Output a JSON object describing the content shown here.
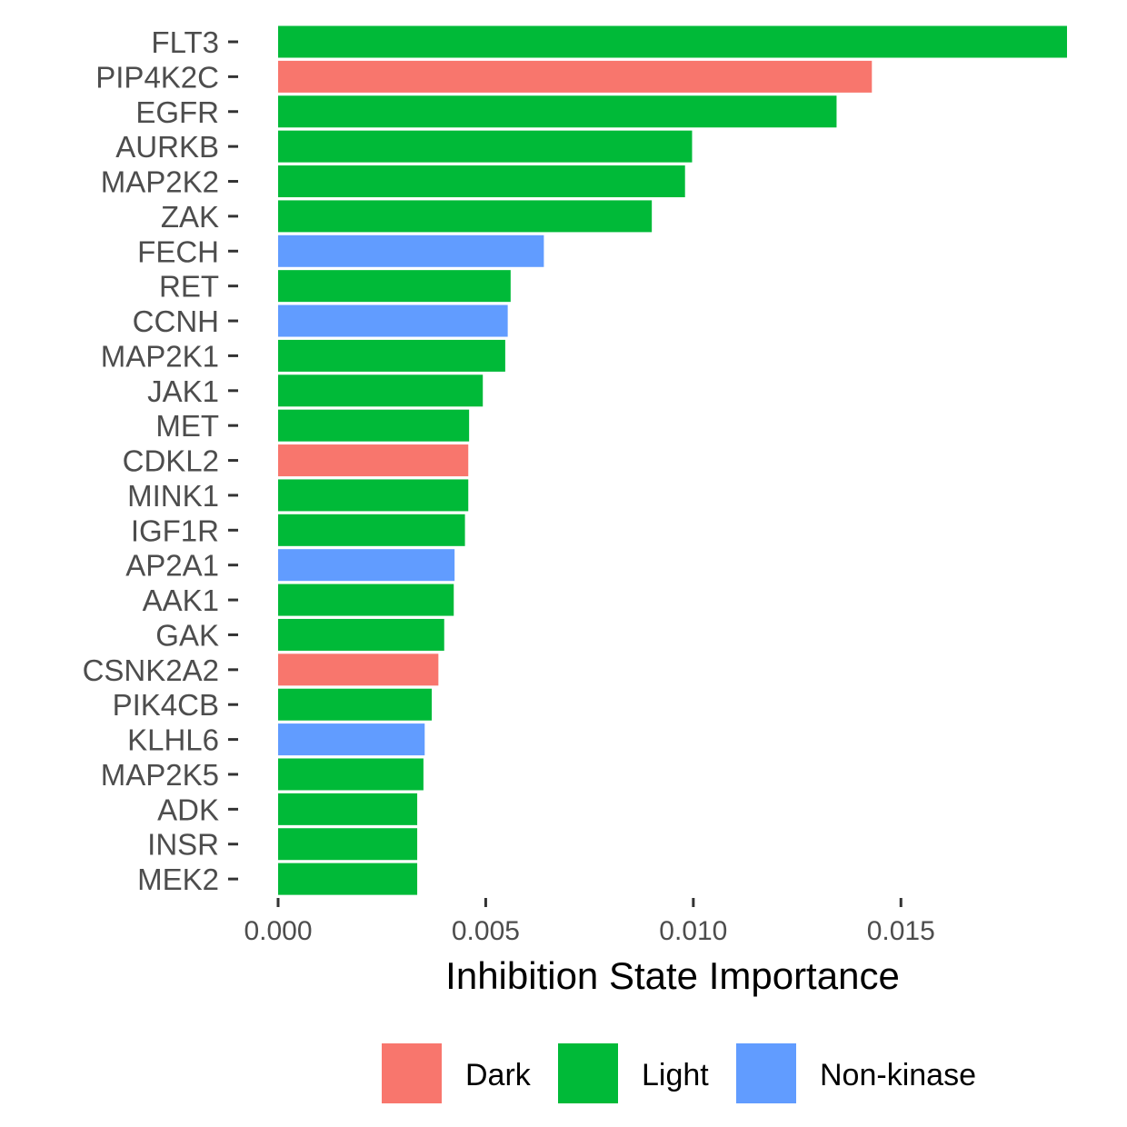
{
  "chart_data": {
    "type": "bar",
    "orientation": "horizontal",
    "xlabel": "Inhibition State Importance",
    "ylabel": "",
    "xlim": [
      0,
      0.019
    ],
    "xticks": [
      {
        "value": 0.0,
        "label": "0.000"
      },
      {
        "value": 0.005,
        "label": "0.005"
      },
      {
        "value": 0.01,
        "label": "0.010"
      },
      {
        "value": 0.015,
        "label": "0.015"
      }
    ],
    "grid": false,
    "legend_position": "bottom",
    "groups": [
      {
        "name": "Dark",
        "color": "#F8766D"
      },
      {
        "name": "Light",
        "color": "#00BA38"
      },
      {
        "name": "Non-kinase",
        "color": "#619CFF"
      }
    ],
    "bars": [
      {
        "label": "FLT3",
        "value": 0.019,
        "group": "Light"
      },
      {
        "label": "PIP4K2C",
        "value": 0.0143,
        "group": "Dark"
      },
      {
        "label": "EGFR",
        "value": 0.01345,
        "group": "Light"
      },
      {
        "label": "AURKB",
        "value": 0.00997,
        "group": "Light"
      },
      {
        "label": "MAP2K2",
        "value": 0.0098,
        "group": "Light"
      },
      {
        "label": "ZAK",
        "value": 0.009,
        "group": "Light"
      },
      {
        "label": "FECH",
        "value": 0.0064,
        "group": "Non-kinase"
      },
      {
        "label": "RET",
        "value": 0.0056,
        "group": "Light"
      },
      {
        "label": "CCNH",
        "value": 0.00553,
        "group": "Non-kinase"
      },
      {
        "label": "MAP2K1",
        "value": 0.00547,
        "group": "Light"
      },
      {
        "label": "JAK1",
        "value": 0.00493,
        "group": "Light"
      },
      {
        "label": "MET",
        "value": 0.0046,
        "group": "Light"
      },
      {
        "label": "CDKL2",
        "value": 0.00458,
        "group": "Dark"
      },
      {
        "label": "MINK1",
        "value": 0.00458,
        "group": "Light"
      },
      {
        "label": "IGF1R",
        "value": 0.0045,
        "group": "Light"
      },
      {
        "label": "AP2A1",
        "value": 0.00425,
        "group": "Non-kinase"
      },
      {
        "label": "AAK1",
        "value": 0.00423,
        "group": "Light"
      },
      {
        "label": "GAK",
        "value": 0.004,
        "group": "Light"
      },
      {
        "label": "CSNK2A2",
        "value": 0.00386,
        "group": "Dark"
      },
      {
        "label": "PIK4CB",
        "value": 0.0037,
        "group": "Light"
      },
      {
        "label": "KLHL6",
        "value": 0.00353,
        "group": "Non-kinase"
      },
      {
        "label": "MAP2K5",
        "value": 0.0035,
        "group": "Light"
      },
      {
        "label": "ADK",
        "value": 0.00335,
        "group": "Light"
      },
      {
        "label": "INSR",
        "value": 0.00335,
        "group": "Light"
      },
      {
        "label": "MEK2",
        "value": 0.00335,
        "group": "Light"
      }
    ]
  }
}
